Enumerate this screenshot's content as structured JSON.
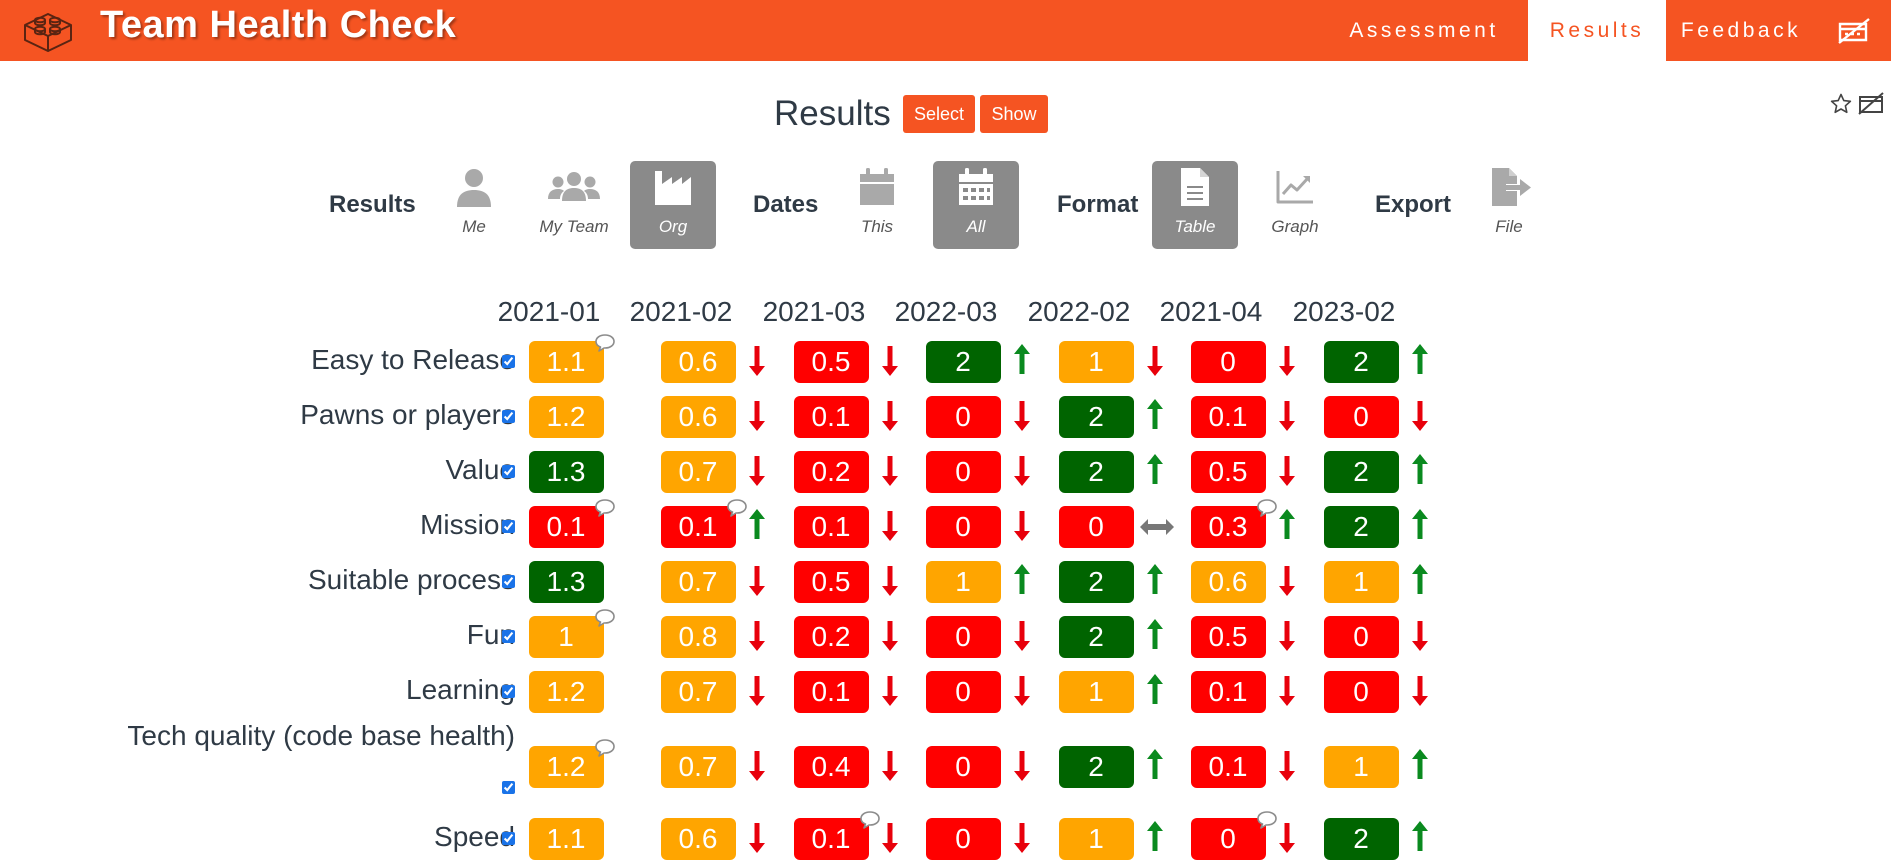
{
  "app": {
    "title": "Team Health Check"
  },
  "nav": {
    "assessment": "Assessment",
    "results": "Results",
    "feedback": "Feedback"
  },
  "page": {
    "title": "Results",
    "select_label": "Select",
    "show_label": "Show"
  },
  "toolbar": {
    "results_label": "Results",
    "dates_label": "Dates",
    "format_label": "Format",
    "export_label": "Export",
    "options": {
      "me": {
        "label": "Me",
        "icon": "user-icon",
        "active": false
      },
      "my_team": {
        "label": "My Team",
        "icon": "users-icon",
        "active": false
      },
      "org": {
        "label": "Org",
        "icon": "industry-icon",
        "active": true
      },
      "this": {
        "label": "This",
        "icon": "calendar-icon",
        "active": false
      },
      "all": {
        "label": "All",
        "icon": "calendar-days-icon",
        "active": true
      },
      "table": {
        "label": "Table",
        "icon": "file-text-icon",
        "active": true
      },
      "graph": {
        "label": "Graph",
        "icon": "chart-line-icon",
        "active": false
      },
      "file": {
        "label": "File",
        "icon": "file-export-icon",
        "active": false
      }
    }
  },
  "colors": {
    "brand": "#f55422",
    "red": "#ff0000",
    "amber": "#ffa500",
    "green": "#006400",
    "trend_up": "#0a8a1f",
    "trend_down": "#e8000b",
    "trend_same": "#777777"
  },
  "table": {
    "columns": [
      "2021-01",
      "2021-02",
      "2021-03",
      "2022-03",
      "2022-02",
      "2021-04",
      "2023-02"
    ],
    "rows": [
      {
        "label": "Easy to Release",
        "checked": true,
        "cells": [
          {
            "value": "1.1",
            "color": "amber",
            "comment": true,
            "trend": ""
          },
          {
            "value": "0.6",
            "color": "amber",
            "comment": false,
            "trend": "down"
          },
          {
            "value": "0.5",
            "color": "red",
            "comment": false,
            "trend": "down"
          },
          {
            "value": "2",
            "color": "green",
            "comment": false,
            "trend": "up"
          },
          {
            "value": "1",
            "color": "amber",
            "comment": false,
            "trend": "down"
          },
          {
            "value": "0",
            "color": "red",
            "comment": false,
            "trend": "down"
          },
          {
            "value": "2",
            "color": "green",
            "comment": false,
            "trend": "up"
          }
        ]
      },
      {
        "label": "Pawns or players",
        "checked": true,
        "cells": [
          {
            "value": "1.2",
            "color": "amber",
            "comment": false,
            "trend": ""
          },
          {
            "value": "0.6",
            "color": "amber",
            "comment": false,
            "trend": "down"
          },
          {
            "value": "0.1",
            "color": "red",
            "comment": false,
            "trend": "down"
          },
          {
            "value": "0",
            "color": "red",
            "comment": false,
            "trend": "down"
          },
          {
            "value": "2",
            "color": "green",
            "comment": false,
            "trend": "up"
          },
          {
            "value": "0.1",
            "color": "red",
            "comment": false,
            "trend": "down"
          },
          {
            "value": "0",
            "color": "red",
            "comment": false,
            "trend": "down"
          }
        ]
      },
      {
        "label": "Value",
        "checked": true,
        "cells": [
          {
            "value": "1.3",
            "color": "green",
            "comment": false,
            "trend": ""
          },
          {
            "value": "0.7",
            "color": "amber",
            "comment": false,
            "trend": "down"
          },
          {
            "value": "0.2",
            "color": "red",
            "comment": false,
            "trend": "down"
          },
          {
            "value": "0",
            "color": "red",
            "comment": false,
            "trend": "down"
          },
          {
            "value": "2",
            "color": "green",
            "comment": false,
            "trend": "up"
          },
          {
            "value": "0.5",
            "color": "red",
            "comment": false,
            "trend": "down"
          },
          {
            "value": "2",
            "color": "green",
            "comment": false,
            "trend": "up"
          }
        ]
      },
      {
        "label": "Mission",
        "checked": true,
        "cells": [
          {
            "value": "0.1",
            "color": "red",
            "comment": true,
            "trend": ""
          },
          {
            "value": "0.1",
            "color": "red",
            "comment": true,
            "trend": "up"
          },
          {
            "value": "0.1",
            "color": "red",
            "comment": false,
            "trend": "down"
          },
          {
            "value": "0",
            "color": "red",
            "comment": false,
            "trend": "down"
          },
          {
            "value": "0",
            "color": "red",
            "comment": false,
            "trend": "same"
          },
          {
            "value": "0.3",
            "color": "red",
            "comment": true,
            "trend": "up"
          },
          {
            "value": "2",
            "color": "green",
            "comment": false,
            "trend": "up"
          }
        ]
      },
      {
        "label": "Suitable process",
        "checked": true,
        "cells": [
          {
            "value": "1.3",
            "color": "green",
            "comment": false,
            "trend": ""
          },
          {
            "value": "0.7",
            "color": "amber",
            "comment": false,
            "trend": "down"
          },
          {
            "value": "0.5",
            "color": "red",
            "comment": false,
            "trend": "down"
          },
          {
            "value": "1",
            "color": "amber",
            "comment": false,
            "trend": "up"
          },
          {
            "value": "2",
            "color": "green",
            "comment": false,
            "trend": "up"
          },
          {
            "value": "0.6",
            "color": "amber",
            "comment": false,
            "trend": "down"
          },
          {
            "value": "1",
            "color": "amber",
            "comment": false,
            "trend": "up"
          }
        ]
      },
      {
        "label": "Fun",
        "checked": true,
        "cells": [
          {
            "value": "1",
            "color": "amber",
            "comment": true,
            "trend": ""
          },
          {
            "value": "0.8",
            "color": "amber",
            "comment": false,
            "trend": "down"
          },
          {
            "value": "0.2",
            "color": "red",
            "comment": false,
            "trend": "down"
          },
          {
            "value": "0",
            "color": "red",
            "comment": false,
            "trend": "down"
          },
          {
            "value": "2",
            "color": "green",
            "comment": false,
            "trend": "up"
          },
          {
            "value": "0.5",
            "color": "red",
            "comment": false,
            "trend": "down"
          },
          {
            "value": "0",
            "color": "red",
            "comment": false,
            "trend": "down"
          }
        ]
      },
      {
        "label": "Learning",
        "checked": true,
        "cells": [
          {
            "value": "1.2",
            "color": "amber",
            "comment": false,
            "trend": ""
          },
          {
            "value": "0.7",
            "color": "amber",
            "comment": false,
            "trend": "down"
          },
          {
            "value": "0.1",
            "color": "red",
            "comment": false,
            "trend": "down"
          },
          {
            "value": "0",
            "color": "red",
            "comment": false,
            "trend": "down"
          },
          {
            "value": "1",
            "color": "amber",
            "comment": false,
            "trend": "up"
          },
          {
            "value": "0.1",
            "color": "red",
            "comment": false,
            "trend": "down"
          },
          {
            "value": "0",
            "color": "red",
            "comment": false,
            "trend": "down"
          }
        ]
      },
      {
        "label": "Tech quality (code base health)",
        "checked": true,
        "cells": [
          {
            "value": "1.2",
            "color": "amber",
            "comment": true,
            "trend": ""
          },
          {
            "value": "0.7",
            "color": "amber",
            "comment": false,
            "trend": "down"
          },
          {
            "value": "0.4",
            "color": "red",
            "comment": false,
            "trend": "down"
          },
          {
            "value": "0",
            "color": "red",
            "comment": false,
            "trend": "down"
          },
          {
            "value": "2",
            "color": "green",
            "comment": false,
            "trend": "up"
          },
          {
            "value": "0.1",
            "color": "red",
            "comment": false,
            "trend": "down"
          },
          {
            "value": "1",
            "color": "amber",
            "comment": false,
            "trend": "up"
          }
        ]
      },
      {
        "label": "Speed",
        "checked": true,
        "cells": [
          {
            "value": "1.1",
            "color": "amber",
            "comment": false,
            "trend": ""
          },
          {
            "value": "0.6",
            "color": "amber",
            "comment": false,
            "trend": "down"
          },
          {
            "value": "0.1",
            "color": "red",
            "comment": true,
            "trend": "down"
          },
          {
            "value": "0",
            "color": "red",
            "comment": false,
            "trend": "down"
          },
          {
            "value": "1",
            "color": "amber",
            "comment": false,
            "trend": "up"
          },
          {
            "value": "0",
            "color": "red",
            "comment": true,
            "trend": "down"
          },
          {
            "value": "2",
            "color": "green",
            "comment": false,
            "trend": "up"
          }
        ]
      }
    ]
  }
}
